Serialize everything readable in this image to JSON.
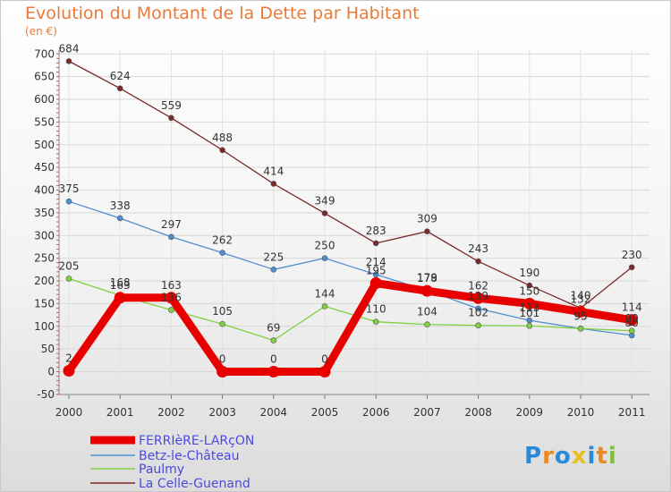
{
  "chart_data": {
    "type": "line",
    "title": "Evolution du Montant de la Dette par Habitant",
    "subtitle": "(en €)",
    "xlabel": "",
    "ylabel": "",
    "ylim": [
      -50,
      700
    ],
    "yticks": [
      -50,
      0,
      50,
      100,
      150,
      200,
      250,
      300,
      350,
      400,
      450,
      500,
      550,
      600,
      650,
      700
    ],
    "categories": [
      "2000",
      "2001",
      "2002",
      "2003",
      "2004",
      "2005",
      "2006",
      "2007",
      "2008",
      "2009",
      "2010",
      "2011"
    ],
    "grid": true,
    "legend_position": "bottom-left",
    "series": [
      {
        "name": "FERRIèRE-LARçON",
        "color": "#e80000",
        "values": [
          2,
          163,
          163,
          0,
          0,
          0,
          195,
          178,
          162,
          150,
          132,
          114
        ]
      },
      {
        "name": "Betz-le-Château",
        "color": "#4f8fd0",
        "values": [
          375,
          338,
          297,
          262,
          225,
          250,
          214,
          179,
          139,
          113,
          95,
          80
        ]
      },
      {
        "name": "Paulmy",
        "color": "#80d040",
        "values": [
          205,
          168,
          136,
          105,
          69,
          144,
          110,
          104,
          102,
          101,
          95,
          90
        ]
      },
      {
        "name": "La Celle-Guenand",
        "color": "#7a2a2a",
        "values": [
          684,
          624,
          559,
          488,
          414,
          349,
          283,
          309,
          243,
          190,
          140,
          230
        ]
      }
    ]
  },
  "logo": {
    "text": "Proxiti",
    "colors": [
      "#2a8ad8",
      "#e88a20",
      "#2a8ad8",
      "#e8c020",
      "#2a8ad8",
      "#e88a20",
      "#80c040"
    ]
  }
}
